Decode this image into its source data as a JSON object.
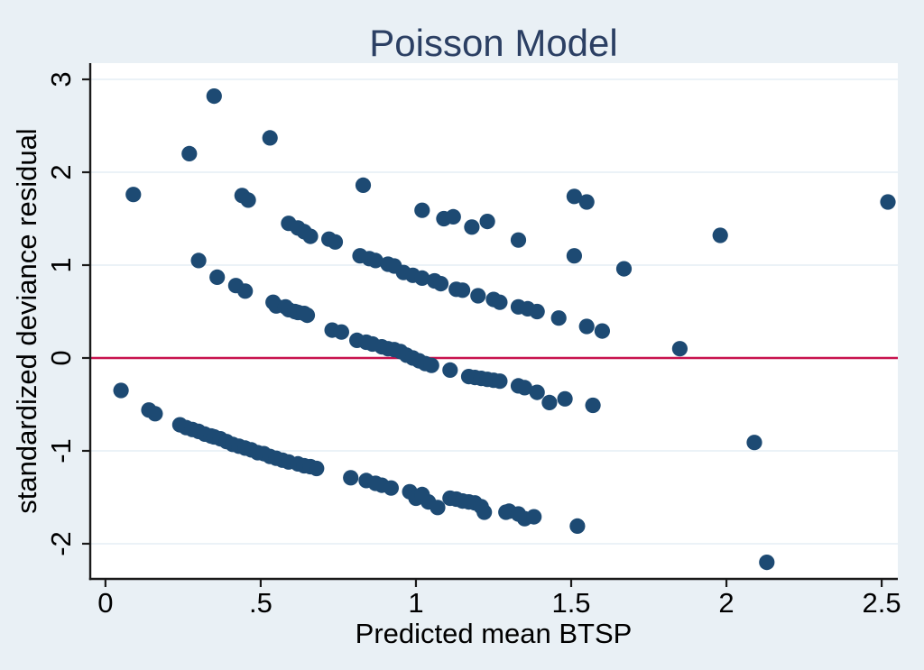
{
  "figure": {
    "title": "Poisson Model",
    "x_axis_label": "Predicted mean BTSP",
    "y_axis_label": "standardized deviance residual"
  },
  "colors": {
    "canvas_bg": "#e9f0f5",
    "plot_bg": "#ffffff",
    "marker": "#1d4a73",
    "reference_line": "#c8124e",
    "gridline": "#dfeaf2",
    "axis": "#1a1a1a",
    "title_text": "#2b3f63",
    "tick_text": "#000000"
  },
  "chart_data": {
    "type": "scatter",
    "title": "Poisson Model",
    "xlabel": "Predicted mean BTSP",
    "ylabel": "standardized deviance residual",
    "xlim": [
      -0.049,
      2.552
    ],
    "ylim": [
      -2.379,
      3.175
    ],
    "x_ticks": {
      "values": [
        0,
        0.5,
        1,
        1.5,
        2,
        2.5
      ],
      "labels": [
        "0",
        ".5",
        "1",
        "1.5",
        "2",
        "2.5"
      ]
    },
    "y_ticks": {
      "values": [
        3,
        2,
        1,
        0,
        -1,
        -2
      ],
      "labels": [
        "3",
        "2",
        "1",
        "0",
        "-1",
        "-2"
      ]
    },
    "grid": "horizontal-only",
    "legend": "none",
    "reference_line_y": 0,
    "marker_radius_px": 8.6,
    "series": [
      {
        "name": "high-count-residuals",
        "points": [
          [
            0.09,
            1.76
          ],
          [
            0.27,
            2.2
          ],
          [
            0.35,
            2.82
          ],
          [
            0.44,
            1.75
          ],
          [
            0.46,
            1.7
          ],
          [
            0.53,
            2.37
          ],
          [
            0.83,
            1.86
          ],
          [
            1.02,
            1.59
          ],
          [
            1.09,
            1.5
          ],
          [
            1.12,
            1.52
          ],
          [
            1.18,
            1.41
          ],
          [
            1.23,
            1.47
          ],
          [
            1.33,
            1.27
          ],
          [
            1.51,
            1.74
          ],
          [
            1.55,
            1.68
          ],
          [
            1.51,
            1.1
          ],
          [
            1.67,
            0.96
          ],
          [
            1.98,
            1.32
          ],
          [
            2.52,
            1.68
          ],
          [
            1.85,
            0.1
          ],
          [
            2.09,
            -0.91
          ],
          [
            2.13,
            -2.2
          ]
        ]
      },
      {
        "name": "band-upper",
        "points": [
          [
            0.59,
            1.45
          ],
          [
            0.62,
            1.4
          ],
          [
            0.64,
            1.36
          ],
          [
            0.66,
            1.31
          ],
          [
            0.72,
            1.28
          ],
          [
            0.74,
            1.25
          ],
          [
            0.82,
            1.1
          ],
          [
            0.85,
            1.07
          ],
          [
            0.87,
            1.05
          ],
          [
            0.91,
            1.01
          ],
          [
            0.93,
            0.99
          ],
          [
            0.96,
            0.92
          ],
          [
            0.99,
            0.89
          ],
          [
            1.02,
            0.86
          ],
          [
            1.06,
            0.83
          ],
          [
            1.08,
            0.8
          ],
          [
            1.13,
            0.74
          ],
          [
            1.15,
            0.73
          ],
          [
            1.2,
            0.67
          ],
          [
            1.25,
            0.63
          ],
          [
            1.27,
            0.6
          ],
          [
            1.33,
            0.55
          ],
          [
            1.36,
            0.53
          ],
          [
            1.39,
            0.5
          ],
          [
            1.46,
            0.43
          ],
          [
            1.55,
            0.34
          ],
          [
            1.6,
            0.29
          ]
        ]
      },
      {
        "name": "band-middle",
        "points": [
          [
            0.3,
            1.05
          ],
          [
            0.36,
            0.87
          ],
          [
            0.42,
            0.78
          ],
          [
            0.45,
            0.72
          ],
          [
            0.54,
            0.6
          ],
          [
            0.55,
            0.56
          ],
          [
            0.58,
            0.55
          ],
          [
            0.59,
            0.52
          ],
          [
            0.61,
            0.5
          ],
          [
            0.62,
            0.49
          ],
          [
            0.64,
            0.48
          ],
          [
            0.65,
            0.46
          ],
          [
            0.73,
            0.3
          ],
          [
            0.76,
            0.28
          ],
          [
            0.81,
            0.19
          ],
          [
            0.84,
            0.17
          ],
          [
            0.86,
            0.15
          ],
          [
            0.89,
            0.12
          ],
          [
            0.91,
            0.1
          ],
          [
            0.93,
            0.09
          ],
          [
            0.95,
            0.07
          ],
          [
            0.97,
            0.03
          ],
          [
            0.99,
            0.0
          ],
          [
            1.01,
            -0.03
          ],
          [
            1.03,
            -0.06
          ],
          [
            1.05,
            -0.08
          ],
          [
            1.11,
            -0.13
          ],
          [
            1.17,
            -0.2
          ],
          [
            1.19,
            -0.21
          ],
          [
            1.21,
            -0.22
          ],
          [
            1.23,
            -0.23
          ],
          [
            1.25,
            -0.24
          ],
          [
            1.27,
            -0.25
          ],
          [
            1.33,
            -0.3
          ],
          [
            1.35,
            -0.32
          ],
          [
            1.39,
            -0.37
          ],
          [
            1.43,
            -0.48
          ],
          [
            1.48,
            -0.44
          ],
          [
            1.57,
            -0.51
          ]
        ]
      },
      {
        "name": "band-lower",
        "points": [
          [
            0.05,
            -0.35
          ],
          [
            0.14,
            -0.56
          ],
          [
            0.16,
            -0.6
          ],
          [
            0.24,
            -0.72
          ],
          [
            0.26,
            -0.75
          ],
          [
            0.28,
            -0.77
          ],
          [
            0.3,
            -0.79
          ],
          [
            0.32,
            -0.82
          ],
          [
            0.34,
            -0.84
          ],
          [
            0.35,
            -0.85
          ],
          [
            0.37,
            -0.87
          ],
          [
            0.39,
            -0.9
          ],
          [
            0.41,
            -0.93
          ],
          [
            0.43,
            -0.95
          ],
          [
            0.45,
            -0.97
          ],
          [
            0.47,
            -0.99
          ],
          [
            0.49,
            -1.02
          ],
          [
            0.51,
            -1.03
          ],
          [
            0.53,
            -1.06
          ],
          [
            0.55,
            -1.08
          ],
          [
            0.57,
            -1.1
          ],
          [
            0.59,
            -1.12
          ],
          [
            0.62,
            -1.14
          ],
          [
            0.64,
            -1.16
          ],
          [
            0.66,
            -1.17
          ],
          [
            0.68,
            -1.19
          ],
          [
            0.79,
            -1.29
          ],
          [
            0.84,
            -1.32
          ],
          [
            0.87,
            -1.35
          ],
          [
            0.89,
            -1.37
          ],
          [
            0.92,
            -1.4
          ],
          [
            0.98,
            -1.44
          ],
          [
            1.0,
            -1.51
          ],
          [
            1.02,
            -1.47
          ],
          [
            1.04,
            -1.55
          ],
          [
            1.07,
            -1.61
          ],
          [
            1.11,
            -1.51
          ],
          [
            1.13,
            -1.52
          ],
          [
            1.15,
            -1.54
          ],
          [
            1.17,
            -1.55
          ],
          [
            1.19,
            -1.56
          ],
          [
            1.21,
            -1.6
          ],
          [
            1.22,
            -1.66
          ],
          [
            1.29,
            -1.66
          ],
          [
            1.3,
            -1.65
          ],
          [
            1.33,
            -1.68
          ],
          [
            1.35,
            -1.73
          ],
          [
            1.38,
            -1.71
          ],
          [
            1.52,
            -1.81
          ]
        ]
      }
    ]
  }
}
